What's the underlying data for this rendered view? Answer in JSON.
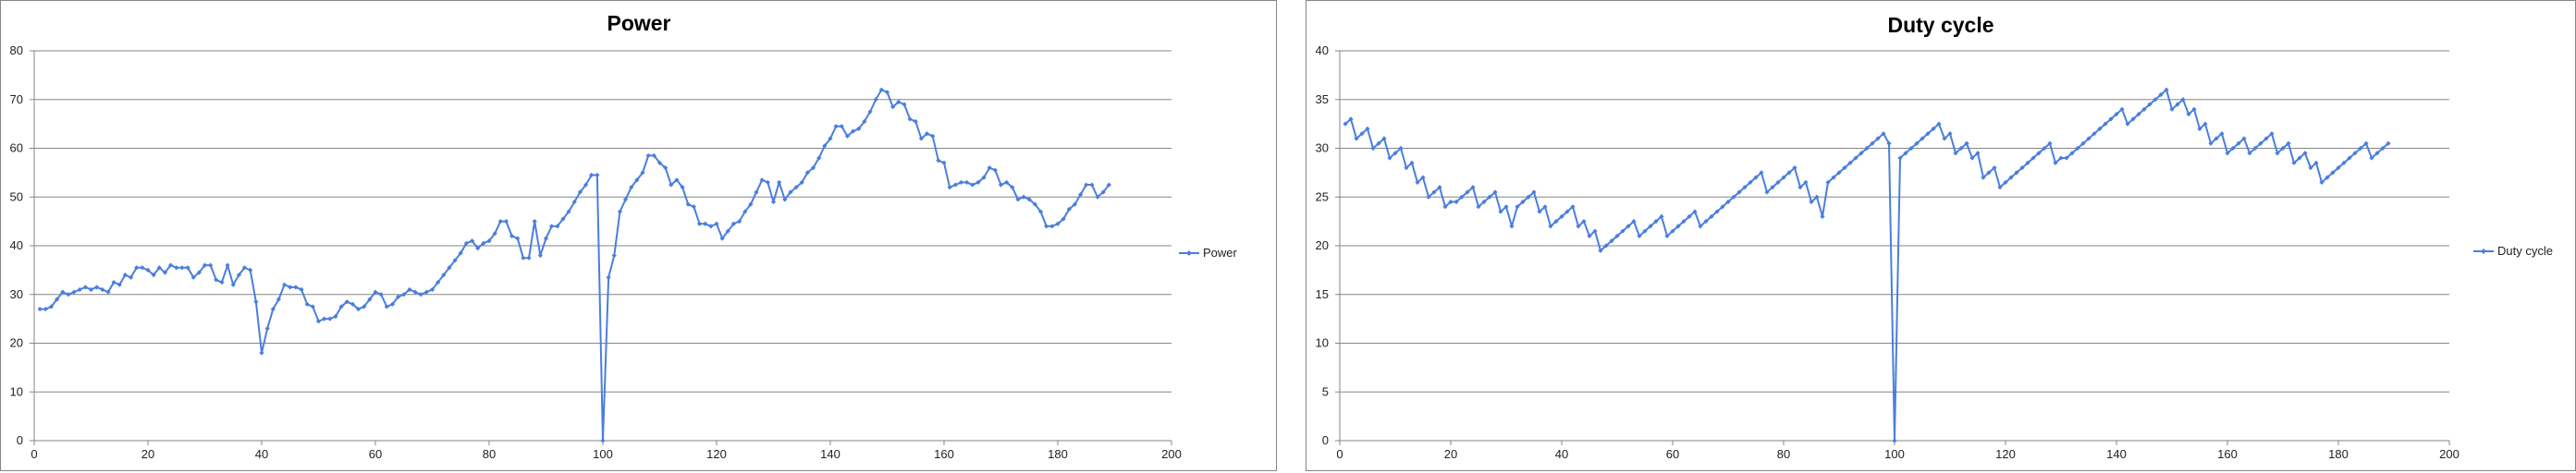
{
  "colors": {
    "series": "#4A7EDE",
    "grid": "#868686",
    "axis": "#868686"
  },
  "chart_data": [
    {
      "type": "line",
      "title": "Power",
      "xlabel": "",
      "ylabel": "",
      "xlim": [
        0,
        200
      ],
      "ylim": [
        0,
        80
      ],
      "xticks": [
        0,
        20,
        40,
        60,
        80,
        100,
        120,
        140,
        160,
        180,
        200
      ],
      "yticks": [
        0,
        10,
        20,
        30,
        40,
        50,
        60,
        70,
        80
      ],
      "grid": "horizontal",
      "legend": "right",
      "series": [
        {
          "name": "Power",
          "values": [
            27,
            27,
            27.5,
            29,
            30.5,
            30,
            30.5,
            31,
            31.5,
            31,
            31.5,
            31,
            30.5,
            32.5,
            32,
            34,
            33.5,
            35.5,
            35.5,
            35,
            34,
            35.5,
            34.5,
            36,
            35.5,
            35.5,
            35.5,
            33.5,
            34.5,
            36,
            36,
            33,
            32.5,
            36,
            32,
            34,
            35.5,
            35,
            28.5,
            18,
            23,
            27,
            29,
            32,
            31.5,
            31.5,
            31,
            28,
            27.5,
            24.5,
            25,
            25,
            25.5,
            27.5,
            28.5,
            28,
            27,
            27.5,
            29,
            30.5,
            30,
            27.5,
            28,
            29.5,
            30,
            31,
            30.5,
            30,
            30.5,
            31,
            32.5,
            34,
            35.5,
            37,
            38.5,
            40.5,
            41,
            39.5,
            40.5,
            41,
            42.5,
            45,
            45,
            42,
            41.5,
            37.5,
            37.5,
            45,
            38,
            41.5,
            44,
            44,
            45.5,
            47,
            49,
            51,
            52.5,
            54.5,
            54.5,
            0,
            33.5,
            38,
            47,
            49.5,
            52,
            53.5,
            55,
            58.5,
            58.5,
            57,
            56,
            52.5,
            53.5,
            52,
            48.5,
            48,
            44.5,
            44.5,
            44,
            44.5,
            41.5,
            43,
            44.5,
            45,
            47,
            48.5,
            51,
            53.5,
            53,
            49,
            53,
            49.5,
            51,
            52,
            53,
            55,
            56,
            58,
            60.5,
            62,
            64.5,
            64.5,
            62.5,
            63.5,
            64,
            65.5,
            67.5,
            70,
            72,
            71.5,
            68.5,
            69.5,
            69,
            66,
            65.5,
            62,
            63,
            62.5,
            57.5,
            57,
            52,
            52.5,
            53,
            53,
            52.5,
            53,
            54,
            56,
            55.5,
            52.5,
            53,
            52,
            49.5,
            50,
            49.5,
            48.5,
            47,
            44,
            44,
            44.5,
            45.5,
            47.5,
            48.5,
            50.5,
            52.5,
            52.5,
            50,
            51,
            52.5
          ],
          "marker": "diamond"
        }
      ]
    },
    {
      "type": "line",
      "title": "Duty cycle",
      "xlabel": "",
      "ylabel": "",
      "xlim": [
        0,
        200
      ],
      "ylim": [
        0,
        40
      ],
      "xticks": [
        0,
        20,
        40,
        60,
        80,
        100,
        120,
        140,
        160,
        180,
        200
      ],
      "yticks": [
        0,
        5,
        10,
        15,
        20,
        25,
        30,
        35,
        40
      ],
      "grid": "horizontal",
      "legend": "right",
      "series": [
        {
          "name": "Duty cycle",
          "values": [
            32.5,
            33,
            31,
            31.5,
            32,
            30,
            30.5,
            31,
            29,
            29.5,
            30,
            28,
            28.5,
            26.5,
            27,
            25,
            25.5,
            26,
            24,
            24.5,
            24.5,
            25,
            25.5,
            26,
            24,
            24.5,
            25,
            25.5,
            23.5,
            24,
            22,
            24,
            24.5,
            25,
            25.5,
            23.5,
            24,
            22,
            22.5,
            23,
            23.5,
            24,
            22,
            22.5,
            21,
            21.5,
            19.5,
            20,
            20.5,
            21,
            21.5,
            22,
            22.5,
            21,
            21.5,
            22,
            22.5,
            23,
            21,
            21.5,
            22,
            22.5,
            23,
            23.5,
            22,
            22.5,
            23,
            23.5,
            24,
            24.5,
            25,
            25.5,
            26,
            26.5,
            27,
            27.5,
            25.5,
            26,
            26.5,
            27,
            27.5,
            28,
            26,
            26.5,
            24.5,
            25,
            23,
            26.5,
            27,
            27.5,
            28,
            28.5,
            29,
            29.5,
            30,
            30.5,
            31,
            31.5,
            30.5,
            0,
            29,
            29.5,
            30,
            30.5,
            31,
            31.5,
            32,
            32.5,
            31,
            31.5,
            29.5,
            30,
            30.5,
            29,
            29.5,
            27,
            27.5,
            28,
            26,
            26.5,
            27,
            27.5,
            28,
            28.5,
            29,
            29.5,
            30,
            30.5,
            28.5,
            29,
            29,
            29.5,
            30,
            30.5,
            31,
            31.5,
            32,
            32.5,
            33,
            33.5,
            34,
            32.5,
            33,
            33.5,
            34,
            34.5,
            35,
            35.5,
            36,
            34,
            34.5,
            35,
            33.5,
            34,
            32,
            32.5,
            30.5,
            31,
            31.5,
            29.5,
            30,
            30.5,
            31,
            29.5,
            30,
            30.5,
            31,
            31.5,
            29.5,
            30,
            30.5,
            28.5,
            29,
            29.5,
            28,
            28.5,
            26.5,
            27,
            27.5,
            28,
            28.5,
            29,
            29.5,
            30,
            30.5,
            29,
            29.5,
            30,
            30.5
          ],
          "marker": "diamond"
        }
      ]
    }
  ]
}
